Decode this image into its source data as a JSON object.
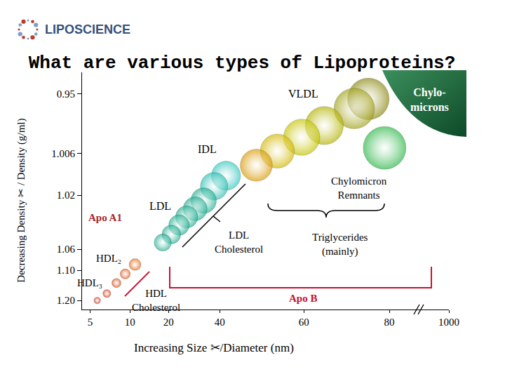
{
  "chart_data": {
    "type": "scatter",
    "title": "What are various types of Lipoproteins?",
    "x_label": "Increasing Size ✂/Diameter (nm)",
    "y_label": "Decreasing Density ✂ / Density (g/ml)",
    "series": [
      {
        "x": [
          78.9,
          75.1,
          71.8,
          64.8,
          59.5,
          53.7,
          48.7,
          41.5,
          37.8,
          33.7,
          30.4,
          27.1,
          24.1,
          21.1,
          18.5,
          11.3,
          9.4,
          8.3,
          7.1,
          5.9
        ],
        "values": [
          1.001,
          0.955,
          0.964,
          0.98,
          0.991,
          1.004,
          1.01,
          1.0135,
          1.017,
          1.024,
          1.03,
          1.036,
          1.042,
          1.049,
          1.055,
          1.089,
          1.112,
          1.142,
          1.177,
          1.2
        ],
        "colors": [
          "#2fb84a",
          "#8c8a14",
          "#a3a31c",
          "#b3b300",
          "#c4c400",
          "#d4b800",
          "#d99a06",
          "#33c7c0",
          "#2bbfb3",
          "#1fae92",
          "#1fae92",
          "#1fae92",
          "#1fae92",
          "#1fae92",
          "#1fae92",
          "#e8600c",
          "#e4500c",
          "#e0400c",
          "#d83008",
          "#d42006"
        ]
      }
    ],
    "xlim": [
      4,
      1000
    ],
    "xticks": [
      5,
      10,
      20,
      40,
      60,
      80,
      1000
    ],
    "ylim": [
      0.93,
      1.23
    ],
    "yticks": [
      0.95,
      1.006,
      1.02,
      1.06,
      {
        "value": 1.1,
        "label": "1.10"
      },
      {
        "value": 1.2,
        "label": "1.20"
      }
    ],
    "grid": false,
    "marker": "circle",
    "annotations": [
      "LIPOSCIENCE",
      "VLDL",
      "Chylo-\nmicrons",
      "IDL",
      "Chylomicron\nRemnants",
      "LDL",
      "Apo A1",
      "LDL\nCholesterol",
      "Triglycerides\n(mainly)",
      "HDL₂",
      "HDL₃",
      "HDL\nCholesterol",
      "Apo B"
    ]
  }
}
